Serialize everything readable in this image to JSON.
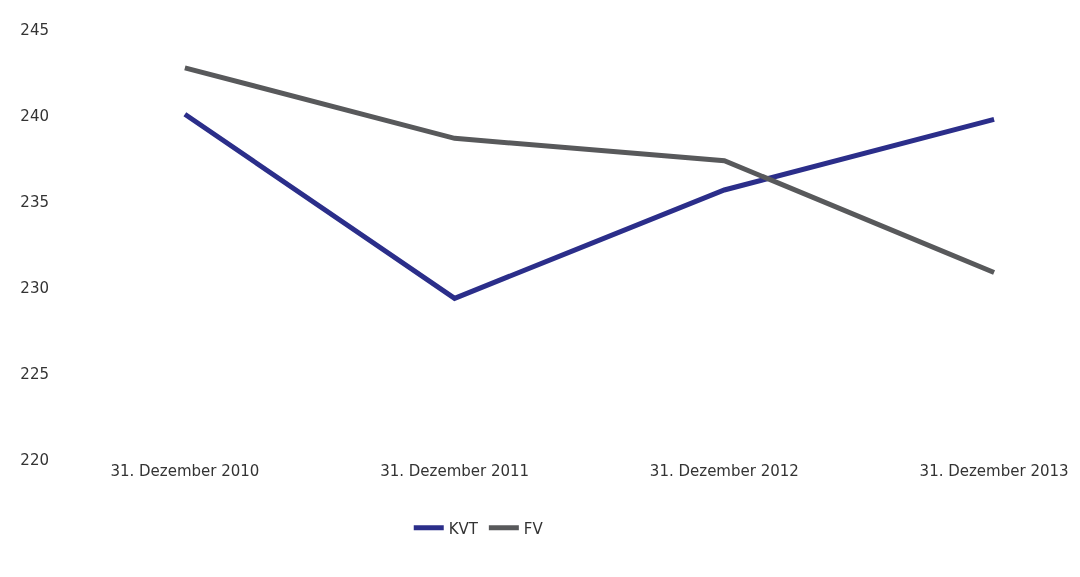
{
  "chart_data": {
    "type": "line",
    "categories": [
      "31. Dezember 2010",
      "31. Dezember 2011",
      "31. Dezember 2012",
      "31. Dezember 2013"
    ],
    "series": [
      {
        "name": "KVT",
        "color": "#2b2e8a",
        "values": [
          240.1,
          229.4,
          235.7,
          239.8
        ]
      },
      {
        "name": "FV",
        "color": "#58595b",
        "values": [
          242.8,
          238.7,
          237.4,
          230.9
        ]
      }
    ],
    "ylim": [
      220,
      245
    ],
    "yticks": [
      220,
      225,
      230,
      235,
      240,
      245
    ],
    "legend": "bottom",
    "marker": "none",
    "line_style": "solid"
  }
}
